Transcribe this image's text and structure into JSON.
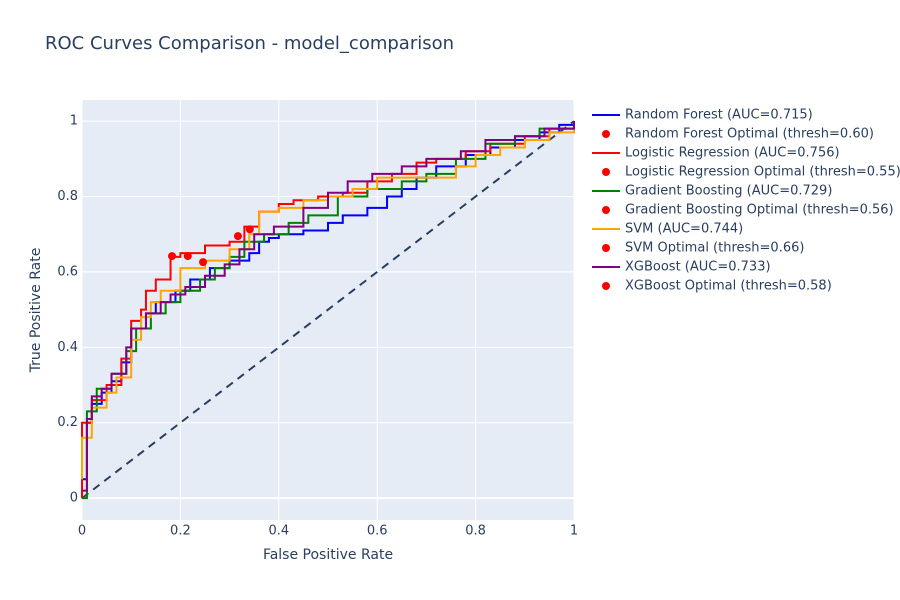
{
  "chart_data": {
    "type": "line",
    "title": "ROC Curves Comparison - model_comparison",
    "x_label": "False Positive Rate",
    "y_label": "True Positive Rate",
    "xlim": [
      0,
      1
    ],
    "ylim": [
      -0.058,
      1.056
    ],
    "xticks": [
      0,
      0.2,
      0.4,
      0.6,
      0.8,
      1
    ],
    "yticks": [
      0,
      0.2,
      0.4,
      0.6,
      0.8,
      1
    ],
    "grid": true,
    "legend": "right",
    "line_shape": "hv",
    "reference": {
      "x": [
        0,
        1
      ],
      "values": [
        0,
        1
      ],
      "color": "#2a3f5f",
      "dash": true
    },
    "series": [
      {
        "name": "Random Forest (AUC=0.715)",
        "mode": "lines",
        "color": "#0000ff",
        "x": [
          0,
          0,
          0.01,
          0.02,
          0.04,
          0.06,
          0.08,
          0.1,
          0.13,
          0.15,
          0.19,
          0.22,
          0.26,
          0.3,
          0.34,
          0.36,
          0.38,
          0.4,
          0.45,
          0.5,
          0.53,
          0.58,
          0.62,
          0.65,
          0.68,
          0.72,
          0.78,
          0.83,
          0.88,
          0.93,
          0.97,
          1
        ],
        "values": [
          0,
          0.05,
          0.2,
          0.25,
          0.28,
          0.31,
          0.36,
          0.45,
          0.49,
          0.52,
          0.55,
          0.58,
          0.61,
          0.63,
          0.65,
          0.68,
          0.69,
          0.7,
          0.71,
          0.73,
          0.75,
          0.77,
          0.8,
          0.82,
          0.85,
          0.88,
          0.91,
          0.93,
          0.95,
          0.97,
          0.99,
          1
        ]
      },
      {
        "name": "Random Forest Optimal (thresh=0.60)",
        "mode": "markers",
        "color": "#ff0000",
        "x": [
          0.341
        ],
        "values": [
          0.713
        ]
      },
      {
        "name": "Logistic Regression (AUC=0.756)",
        "mode": "lines",
        "color": "#ff0000",
        "x": [
          0,
          0,
          0.02,
          0.05,
          0.08,
          0.1,
          0.12,
          0.13,
          0.15,
          0.18,
          0.2,
          0.25,
          0.3,
          0.33,
          0.36,
          0.4,
          0.43,
          0.48,
          0.53,
          0.58,
          0.63,
          0.68,
          0.72,
          0.78,
          0.83,
          0.9,
          0.95,
          1
        ],
        "values": [
          0,
          0.2,
          0.26,
          0.3,
          0.37,
          0.47,
          0.5,
          0.55,
          0.58,
          0.64,
          0.65,
          0.67,
          0.68,
          0.72,
          0.76,
          0.78,
          0.79,
          0.8,
          0.81,
          0.84,
          0.86,
          0.89,
          0.9,
          0.92,
          0.94,
          0.96,
          0.98,
          1
        ]
      },
      {
        "name": "Logistic Regression Optimal (thresh=0.55)",
        "mode": "markers",
        "color": "#ff0000",
        "x": [
          0.183
        ],
        "values": [
          0.642
        ]
      },
      {
        "name": "Gradient Boosting (AUC=0.729)",
        "mode": "lines",
        "color": "#008000",
        "x": [
          0,
          0.01,
          0.03,
          0.06,
          0.09,
          0.11,
          0.14,
          0.17,
          0.2,
          0.24,
          0.27,
          0.3,
          0.33,
          0.37,
          0.42,
          0.46,
          0.52,
          0.58,
          0.65,
          0.7,
          0.76,
          0.82,
          0.88,
          0.93,
          1
        ],
        "values": [
          0,
          0.23,
          0.29,
          0.33,
          0.39,
          0.45,
          0.49,
          0.52,
          0.55,
          0.58,
          0.61,
          0.64,
          0.68,
          0.7,
          0.73,
          0.75,
          0.8,
          0.82,
          0.84,
          0.86,
          0.9,
          0.94,
          0.96,
          0.98,
          1
        ]
      },
      {
        "name": "Gradient Boosting Optimal (thresh=0.56)",
        "mode": "markers",
        "color": "#ff0000",
        "x": [
          0.317
        ],
        "values": [
          0.695
        ]
      },
      {
        "name": "SVM (AUC=0.744)",
        "mode": "lines",
        "color": "#ffa500",
        "x": [
          0,
          0,
          0.02,
          0.05,
          0.07,
          0.1,
          0.12,
          0.14,
          0.16,
          0.2,
          0.25,
          0.3,
          0.34,
          0.36,
          0.4,
          0.45,
          0.5,
          0.55,
          0.6,
          0.65,
          0.72,
          0.76,
          0.8,
          0.85,
          0.9,
          0.95,
          1
        ],
        "values": [
          0.05,
          0.16,
          0.24,
          0.28,
          0.32,
          0.42,
          0.48,
          0.52,
          0.55,
          0.61,
          0.63,
          0.66,
          0.7,
          0.76,
          0.77,
          0.79,
          0.8,
          0.82,
          0.85,
          0.85,
          0.85,
          0.88,
          0.91,
          0.93,
          0.95,
          0.97,
          0.98
        ]
      },
      {
        "name": "SVM Optimal (thresh=0.66)",
        "mode": "markers",
        "color": "#ff0000",
        "x": [
          0.215
        ],
        "values": [
          0.642
        ]
      },
      {
        "name": "XGBoost (AUC=0.733)",
        "mode": "lines",
        "color": "#800080",
        "x": [
          0,
          0.01,
          0.02,
          0.04,
          0.06,
          0.09,
          0.1,
          0.13,
          0.16,
          0.18,
          0.21,
          0.25,
          0.29,
          0.32,
          0.35,
          0.39,
          0.45,
          0.5,
          0.54,
          0.59,
          0.65,
          0.7,
          0.77,
          0.82,
          0.88,
          0.94,
          1
        ],
        "values": [
          0.02,
          0.21,
          0.27,
          0.29,
          0.33,
          0.4,
          0.45,
          0.49,
          0.52,
          0.54,
          0.56,
          0.59,
          0.62,
          0.66,
          0.7,
          0.72,
          0.77,
          0.81,
          0.84,
          0.86,
          0.88,
          0.9,
          0.92,
          0.95,
          0.96,
          0.98,
          1
        ]
      },
      {
        "name": "XGBoost Optimal (thresh=0.58)",
        "mode": "markers",
        "color": "#ff0000",
        "x": [
          0.246
        ],
        "values": [
          0.626
        ]
      }
    ]
  }
}
